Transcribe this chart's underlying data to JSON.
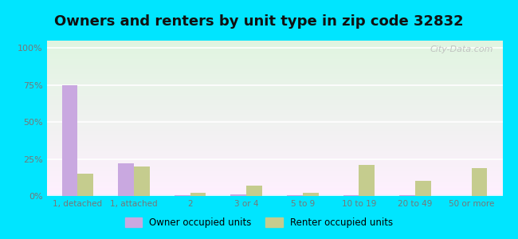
{
  "title": "Owners and renters by unit type in zip code 32832",
  "categories": [
    "1, detached",
    "1, attached",
    "2",
    "3 or 4",
    "5 to 9",
    "10 to 19",
    "20 to 49",
    "50 or more"
  ],
  "owner_values": [
    75,
    22,
    0.3,
    1.0,
    0.3,
    0.3,
    0.3,
    0
  ],
  "renter_values": [
    15,
    20,
    2,
    7,
    2,
    21,
    10,
    19
  ],
  "owner_color": "#c9a8e0",
  "renter_color": "#c5cc8e",
  "background_outer": "#00e5ff",
  "background_plot_color": "#ddeedd",
  "yticks": [
    0,
    25,
    50,
    75,
    100
  ],
  "ytick_labels": [
    "0%",
    "25%",
    "50%",
    "75%",
    "100%"
  ],
  "ylim": [
    0,
    105
  ],
  "title_fontsize": 13,
  "legend_label_owner": "Owner occupied units",
  "legend_label_renter": "Renter occupied units",
  "watermark": "City-Data.com",
  "bar_width": 0.28
}
